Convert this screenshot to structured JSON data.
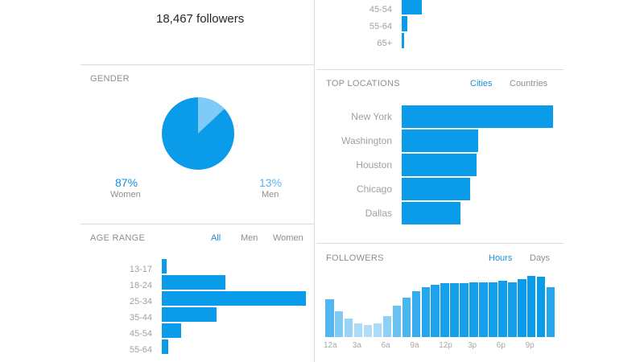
{
  "followers_count": "18,467 followers",
  "gender": {
    "title": "GENDER",
    "women_pct": "87%",
    "women_label": "Women",
    "men_pct": "13%",
    "men_label": "Men",
    "women_value": 87,
    "men_value": 13,
    "colors": {
      "women": "#0a9be9",
      "men": "#7fcaf7"
    }
  },
  "age_top": {
    "rows": [
      {
        "label": "45-54",
        "value": 25
      },
      {
        "label": "55-64",
        "value": 7
      },
      {
        "label": "65+",
        "value": 3
      }
    ]
  },
  "age_range": {
    "title": "AGE RANGE",
    "tabs": [
      "All",
      "Men",
      "Women"
    ],
    "rows": [
      {
        "label": "13-17",
        "value": 6
      },
      {
        "label": "18-24",
        "value": 79
      },
      {
        "label": "25-34",
        "value": 179
      },
      {
        "label": "35-44",
        "value": 68
      },
      {
        "label": "45-54",
        "value": 24
      },
      {
        "label": "55-64",
        "value": 8
      }
    ]
  },
  "top_locations": {
    "title": "TOP LOCATIONS",
    "tabs": [
      "Cities",
      "Countries"
    ],
    "rows": [
      {
        "label": "New York",
        "value": 188
      },
      {
        "label": "Washington",
        "value": 95
      },
      {
        "label": "Houston",
        "value": 93
      },
      {
        "label": "Chicago",
        "value": 85
      },
      {
        "label": "Dallas",
        "value": 73
      }
    ]
  },
  "followers": {
    "title": "FOLLOWERS",
    "tabs": [
      "Hours",
      "Days"
    ],
    "ticks": [
      "12a",
      "3a",
      "6a",
      "9a",
      "12p",
      "3p",
      "6p",
      "9p"
    ],
    "values": [
      45,
      30,
      22,
      16,
      14,
      16,
      25,
      37,
      47,
      54,
      59,
      62,
      64,
      64,
      64,
      65,
      65,
      65,
      66,
      65,
      68,
      72,
      71,
      59
    ]
  }
}
